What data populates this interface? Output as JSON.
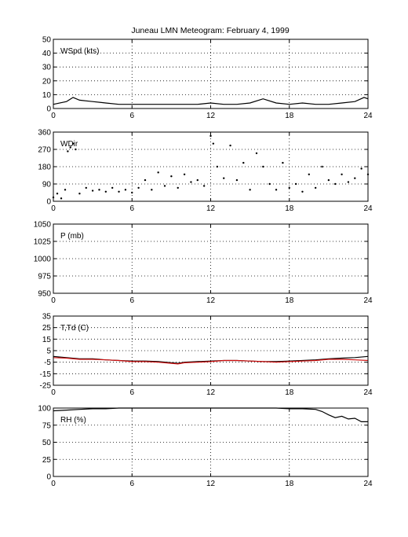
{
  "figure": {
    "title": "Juneau LMN Meteogram:  February  4, 1999"
  },
  "colors": {
    "background": "#ffffff",
    "axes": "#000000",
    "grid": "#000000",
    "temperature": "#000000",
    "dewpoint": "#d01010"
  },
  "chart_data": [
    {
      "id": "wspd",
      "type": "line",
      "panel_label": "WSpd (kts)",
      "xlim": [
        0,
        24
      ],
      "xticks": [
        0,
        6,
        12,
        18,
        24
      ],
      "ylim": [
        0,
        50
      ],
      "yticks": [
        0,
        10,
        20,
        30,
        40,
        50
      ],
      "grid": true,
      "series": [
        {
          "x": [
            0,
            1,
            1.5,
            2,
            3,
            4,
            5,
            6,
            7,
            8,
            9,
            10,
            11,
            12,
            13,
            14,
            15,
            16,
            17,
            18,
            19,
            20,
            21,
            22,
            23,
            23.7,
            24
          ],
          "values": [
            3,
            5,
            8,
            6,
            5,
            4,
            3,
            3,
            3,
            3,
            3,
            3,
            3,
            4,
            3,
            3,
            4,
            7,
            4,
            3,
            4,
            3,
            3,
            4,
            5,
            8,
            7
          ]
        }
      ]
    },
    {
      "id": "wdir",
      "type": "scatter",
      "panel_label": "WDir",
      "xlim": [
        0,
        24
      ],
      "xticks": [
        0,
        6,
        12,
        18,
        24
      ],
      "ylim": [
        0,
        360
      ],
      "yticks": [
        0,
        90,
        180,
        270,
        360
      ],
      "grid": true,
      "series": [
        {
          "x": [
            0,
            0.3,
            0.6,
            0.9,
            1.1,
            1.3,
            1.5,
            1.7,
            2.0,
            2.5,
            3,
            3.5,
            4,
            4.5,
            5,
            5.5,
            6,
            6.5,
            7,
            7.5,
            8,
            8.5,
            9,
            9.5,
            10,
            10.5,
            11,
            11.5,
            12,
            12.2,
            12.5,
            13,
            13.5,
            14,
            14.5,
            15,
            15.5,
            16,
            16.5,
            17,
            17.5,
            18,
            18.5,
            19,
            19.5,
            20,
            20.5,
            21,
            21.5,
            22,
            22.5,
            23,
            23.5,
            24
          ],
          "values": [
            20,
            40,
            15,
            60,
            260,
            280,
            300,
            270,
            40,
            70,
            55,
            60,
            50,
            70,
            50,
            60,
            45,
            70,
            110,
            60,
            150,
            80,
            130,
            70,
            140,
            100,
            110,
            80,
            340,
            300,
            180,
            120,
            290,
            110,
            200,
            60,
            250,
            180,
            90,
            60,
            200,
            70,
            90,
            50,
            140,
            70,
            180,
            110,
            90,
            140,
            100,
            120,
            170,
            140
          ]
        }
      ]
    },
    {
      "id": "pressure",
      "type": "line",
      "panel_label": "P (mb)",
      "xlim": [
        0,
        24
      ],
      "xticks": [
        0,
        6,
        12,
        18,
        24
      ],
      "ylim": [
        950,
        1050
      ],
      "yticks": [
        950,
        975,
        1000,
        1025,
        1050
      ],
      "grid": true,
      "series": []
    },
    {
      "id": "temp",
      "type": "line",
      "panel_label": "T,Td (C)",
      "xlim": [
        0,
        24
      ],
      "xticks": [
        0,
        6,
        12,
        18,
        24
      ],
      "ylim": [
        -25,
        35
      ],
      "yticks": [
        -25,
        -15,
        -5,
        5,
        15,
        25,
        35
      ],
      "grid": true,
      "series": [
        {
          "color": "#000000",
          "x": [
            0,
            1,
            2,
            3,
            4,
            5,
            6,
            7,
            8,
            9,
            9.5,
            10,
            11,
            12,
            13,
            14,
            15,
            16,
            17,
            18,
            19,
            20,
            21,
            22,
            23,
            24
          ],
          "values": [
            0,
            -1,
            -2,
            -2,
            -3,
            -3.5,
            -4,
            -4,
            -4.5,
            -5.5,
            -6,
            -5,
            -4.5,
            -4,
            -3.5,
            -3.5,
            -4,
            -4.5,
            -4.5,
            -4,
            -3.5,
            -3,
            -2,
            -1.5,
            -1,
            0
          ]
        },
        {
          "color": "#d01010",
          "x": [
            0,
            1,
            2,
            3,
            4,
            5,
            6,
            7,
            8,
            9,
            9.5,
            10,
            11,
            12,
            13,
            14,
            15,
            16,
            17,
            18,
            19,
            20,
            21,
            22,
            23,
            24
          ],
          "values": [
            -1,
            -1.5,
            -2.5,
            -2.5,
            -3,
            -3.5,
            -4.5,
            -4.5,
            -5,
            -6,
            -6.5,
            -5.5,
            -5,
            -4.5,
            -3.5,
            -3.5,
            -4,
            -4.5,
            -5,
            -4.5,
            -4,
            -3.5,
            -2.5,
            -2.5,
            -3,
            -3.5
          ]
        }
      ]
    },
    {
      "id": "rh",
      "type": "line",
      "panel_label": "RH (%)",
      "xlim": [
        0,
        24
      ],
      "xticks": [
        0,
        6,
        12,
        18,
        24
      ],
      "ylim": [
        0,
        100
      ],
      "yticks": [
        0,
        25,
        50,
        75,
        100
      ],
      "grid": true,
      "series": [
        {
          "x": [
            0,
            1,
            2,
            3,
            4,
            5,
            6,
            8,
            10,
            12,
            14,
            16,
            17,
            18,
            19,
            20,
            20.5,
            21,
            21.5,
            22,
            22.5,
            23,
            23.5,
            24
          ],
          "values": [
            96,
            97,
            98,
            99,
            99,
            100,
            100,
            100,
            100,
            100,
            100,
            100,
            100,
            99,
            99,
            98,
            95,
            90,
            86,
            88,
            84,
            85,
            80,
            80
          ]
        }
      ]
    }
  ]
}
